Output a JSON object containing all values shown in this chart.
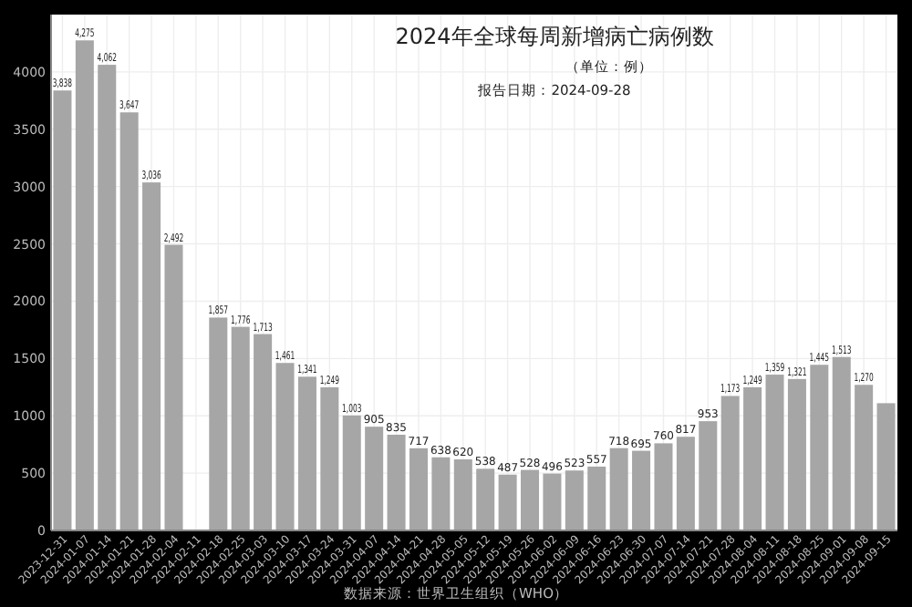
{
  "chart_data": {
    "type": "bar",
    "title": "2024年全球每周新增病亡病例数",
    "subtitle": "（单位：例）",
    "annotations": [
      "报告日期：2024-09-28",
      "数据来源：世界卫生组织（WHO）"
    ],
    "categories": [
      "2023-12-31",
      "2024-01-07",
      "2024-01-14",
      "2024-01-21",
      "2024-01-28",
      "2024-02-04",
      "2024-02-11",
      "2024-02-18",
      "2024-02-25",
      "2024-03-03",
      "2024-03-10",
      "2024-03-17",
      "2024-03-24",
      "2024-03-31",
      "2024-04-07",
      "2024-04-14",
      "2024-04-21",
      "2024-04-28",
      "2024-05-05",
      "2024-05-12",
      "2024-05-19",
      "2024-05-26",
      "2024-06-02",
      "2024-06-09",
      "2024-06-16",
      "2024-06-23",
      "2024-06-30",
      "2024-07-07",
      "2024-07-14",
      "2024-07-21",
      "2024-07-28",
      "2024-08-04",
      "2024-08-11",
      "2024-08-18",
      "2024-08-25",
      "2024-09-01",
      "2024-09-08",
      "2024-09-15"
    ],
    "values": [
      3838,
      4275,
      4062,
      3647,
      3036,
      2492,
      null,
      1857,
      1776,
      1713,
      1461,
      1341,
      1249,
      1003,
      905,
      835,
      717,
      638,
      620,
      538,
      487,
      528,
      496,
      523,
      557,
      718,
      695,
      760,
      817,
      953,
      1173,
      1249,
      1359,
      1321,
      1445,
      1513,
      1270,
      1110
    ],
    "value_labels": [
      "3,838",
      "4,275",
      "4,062",
      "3,647",
      "3,036",
      "2,492",
      null,
      "1,857",
      "1,776",
      "1,713",
      "1,461",
      "1,341",
      "1,249",
      "1,003",
      "905",
      "835",
      "717",
      "638",
      "620",
      "538",
      "487",
      "528",
      "496",
      "523",
      "557",
      "718",
      "695",
      "760",
      "817",
      "953",
      "1,173",
      "1,249",
      "1,359",
      "1,321",
      "1,445",
      "1,513",
      "1,270",
      null
    ],
    "color": "#a6a6a6",
    "ylim": [
      0,
      4500
    ],
    "yticks": [
      0,
      500,
      1000,
      1500,
      2000,
      2500,
      3000,
      3500,
      4000
    ],
    "grid": true
  }
}
